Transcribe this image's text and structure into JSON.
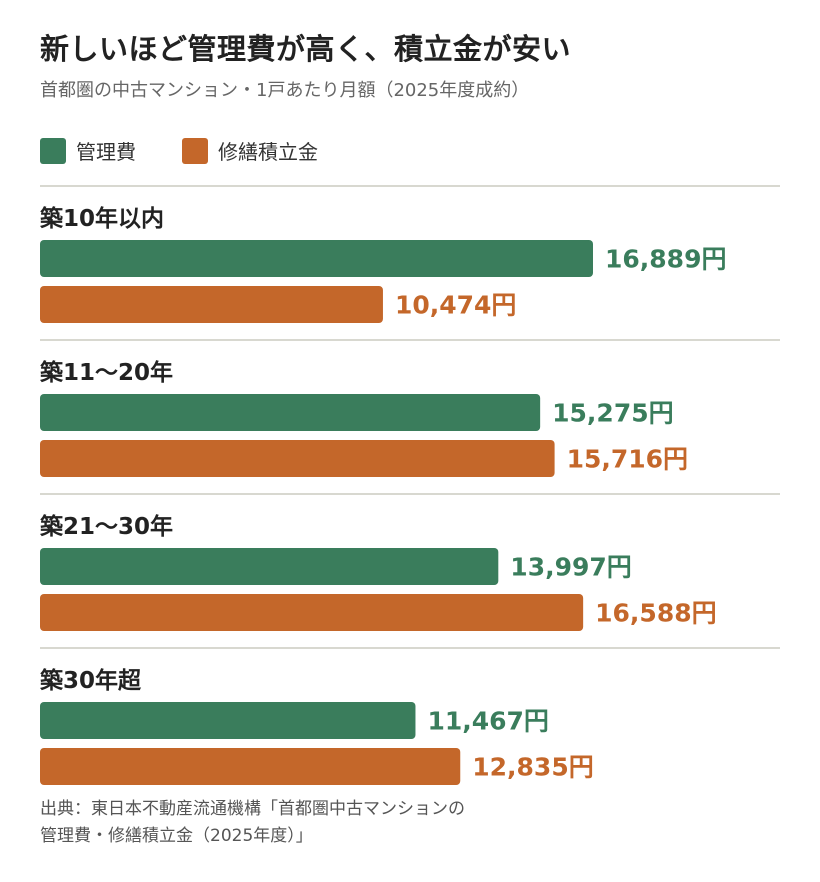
{
  "title": "新しいほど管理費が高く、積立金が安い",
  "subtitle": "首都圏の中古マンション・1戸あたり月額（2025年度成約）",
  "colors": {
    "management": "#3a7d5c",
    "repair": "#c4672a",
    "divider": "#d8d8d0"
  },
  "source_lines": [
    "出典：東日本不動産流通機構「首都圏中古マンションの",
    "管理費・修繕積立金（2025年度）」"
  ],
  "chart_data": {
    "type": "bar",
    "orientation": "horizontal",
    "unit_suffix": "円",
    "categories": [
      "築10年以内",
      "築11～20年",
      "築21～30年",
      "築30年超"
    ],
    "series": [
      {
        "name": "管理費",
        "color": "#3a7d5c",
        "values": [
          16889,
          15275,
          13997,
          11467
        ],
        "labels": [
          "16,889円",
          "15,275円",
          "13,997円",
          "11,467円"
        ]
      },
      {
        "name": "修繕積立金",
        "color": "#c4672a",
        "values": [
          10474,
          15716,
          16588,
          12835
        ],
        "labels": [
          "10,474円",
          "15,716円",
          "16,588円",
          "12,835円"
        ]
      }
    ],
    "legend_position": "top-left",
    "grid": false
  }
}
